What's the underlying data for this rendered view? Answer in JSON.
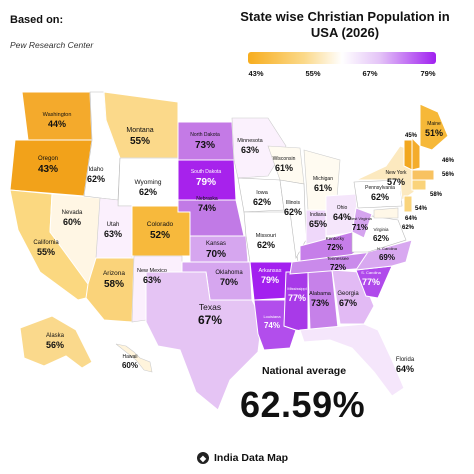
{
  "header": {
    "source_label": "Based on:",
    "source_name": "Pew Research Center",
    "title_line1": "State wise Christian Population in",
    "title_line2": "USA (2026)"
  },
  "legend": {
    "ticks": [
      "43%",
      "55%",
      "67%",
      "79%"
    ],
    "colors": {
      "low": "#f7ad1e",
      "mid": "#ffffff",
      "high": "#a020f0"
    }
  },
  "states": [
    {
      "name": "Washington",
      "value": "44%"
    },
    {
      "name": "Oregon",
      "value": "43%"
    },
    {
      "name": "California",
      "value": "55%"
    },
    {
      "name": "Nevada",
      "value": "60%"
    },
    {
      "name": "Idaho",
      "value": "62%"
    },
    {
      "name": "Montana",
      "value": "55%"
    },
    {
      "name": "Wyoming",
      "value": "62%"
    },
    {
      "name": "Utah",
      "value": "63%"
    },
    {
      "name": "Arizona",
      "value": "58%"
    },
    {
      "name": "Colorado",
      "value": "52%"
    },
    {
      "name": "New Mexico",
      "value": "63%"
    },
    {
      "name": "North Dakota",
      "value": "73%"
    },
    {
      "name": "South Dakota",
      "value": "79%"
    },
    {
      "name": "Nebraska",
      "value": "74%"
    },
    {
      "name": "Kansas",
      "value": "70%"
    },
    {
      "name": "Oklahoma",
      "value": "70%"
    },
    {
      "name": "Texas",
      "value": "67%"
    },
    {
      "name": "Minnesota",
      "value": "63%"
    },
    {
      "name": "Iowa",
      "value": "62%"
    },
    {
      "name": "Missouri",
      "value": "62%"
    },
    {
      "name": "Arkansas",
      "value": "79%"
    },
    {
      "name": "Louisiana",
      "value": "74%"
    },
    {
      "name": "Wisconsin",
      "value": "61%"
    },
    {
      "name": "Illinois",
      "value": "62%"
    },
    {
      "name": "Mississippi",
      "value": "77%"
    },
    {
      "name": "Michigan",
      "value": "61%"
    },
    {
      "name": "Indiana",
      "value": "65%"
    },
    {
      "name": "Kentucky",
      "value": "72%"
    },
    {
      "name": "Tennessee",
      "value": "72%"
    },
    {
      "name": "Alabama",
      "value": "73%"
    },
    {
      "name": "Georgia",
      "value": "67%"
    },
    {
      "name": "Ohio",
      "value": "64%"
    },
    {
      "name": "Florida",
      "value": "64%"
    },
    {
      "name": "S. Carolina",
      "value": "77%"
    },
    {
      "name": "N. Carolina",
      "value": "69%"
    },
    {
      "name": "Virginia",
      "value": "62%"
    },
    {
      "name": "West Virginia",
      "value": "71%"
    },
    {
      "name": "Pennsylvania",
      "value": "62%"
    },
    {
      "name": "New York",
      "value": "57%"
    },
    {
      "name": "Maine",
      "value": "51%"
    },
    {
      "name": "Alaska",
      "value": "56%"
    },
    {
      "name": "Hawaii",
      "value": "60%"
    }
  ],
  "small_state_values": [
    "45%",
    "46%",
    "56%",
    "58%",
    "54%",
    "64%",
    "62%"
  ],
  "national": {
    "label": "National average",
    "value": "62.59%"
  },
  "brand": {
    "icon_glyph": "◆",
    "name": "India Data Map"
  }
}
